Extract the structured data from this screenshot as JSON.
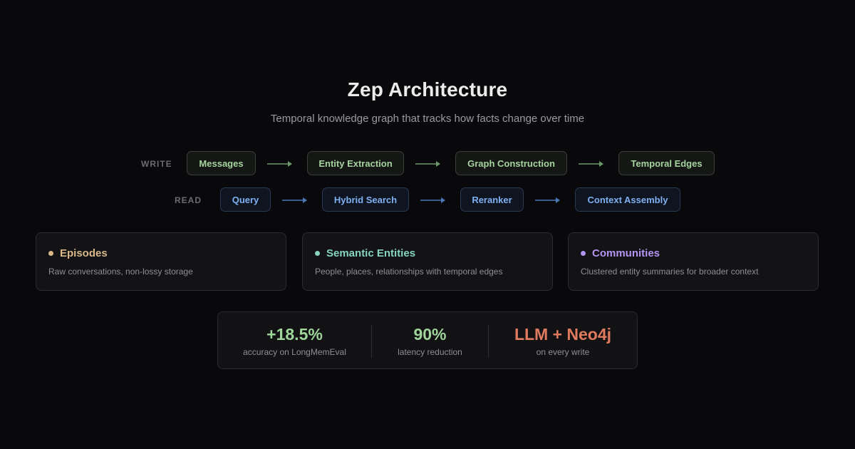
{
  "title": "Zep Architecture",
  "subtitle": "Temporal knowledge graph that tracks how facts change over time",
  "write_row": {
    "label": "WRITE",
    "steps": [
      "Messages",
      "Entity Extraction",
      "Graph Construction",
      "Temporal Edges"
    ],
    "color": "#a7d3a0",
    "arrow_color": "#6b9a6a"
  },
  "read_row": {
    "label": "READ",
    "steps": [
      "Query",
      "Hybrid Search",
      "Reranker",
      "Context Assembly"
    ],
    "color": "#7fb0f2",
    "arrow_color": "#4a78b5"
  },
  "cards": [
    {
      "title": "Episodes",
      "description": "Raw conversations, non-lossy storage",
      "color": "#d9b98a"
    },
    {
      "title": "Semantic Entities",
      "description": "People, places, relationships with temporal edges",
      "color": "#86d4c0"
    },
    {
      "title": "Communities",
      "description": "Clustered entity summaries for broader context",
      "color": "#b294f2"
    }
  ],
  "stats": [
    {
      "value": "+18.5%",
      "label": "accuracy on LongMemEval",
      "color": "#9fd49a"
    },
    {
      "value": "90%",
      "label": "latency reduction",
      "color": "#9fd49a"
    },
    {
      "value": "LLM + Neo4j",
      "label": "on every write",
      "color": "#e07a5f"
    }
  ]
}
